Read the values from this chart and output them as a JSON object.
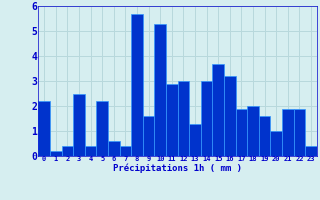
{
  "hours": [
    0,
    1,
    2,
    3,
    4,
    5,
    6,
    7,
    8,
    9,
    10,
    11,
    12,
    13,
    14,
    15,
    16,
    17,
    18,
    19,
    20,
    21,
    22,
    23
  ],
  "values": [
    2.2,
    0.2,
    0.4,
    2.5,
    0.4,
    2.2,
    0.6,
    0.4,
    5.7,
    1.6,
    5.3,
    2.9,
    3.0,
    1.3,
    3.0,
    3.7,
    3.2,
    1.9,
    2.0,
    1.6,
    1.0,
    1.9,
    1.9,
    0.4
  ],
  "bar_color": "#0033cc",
  "bar_edge_color": "#3399ff",
  "background_color": "#d6eef0",
  "grid_color": "#b8d8dc",
  "xlabel": "Précipitations 1h ( mm )",
  "xlabel_color": "#0000cc",
  "tick_color": "#0000cc",
  "ylim": [
    0,
    6
  ],
  "yticks": [
    0,
    1,
    2,
    3,
    4,
    5,
    6
  ]
}
